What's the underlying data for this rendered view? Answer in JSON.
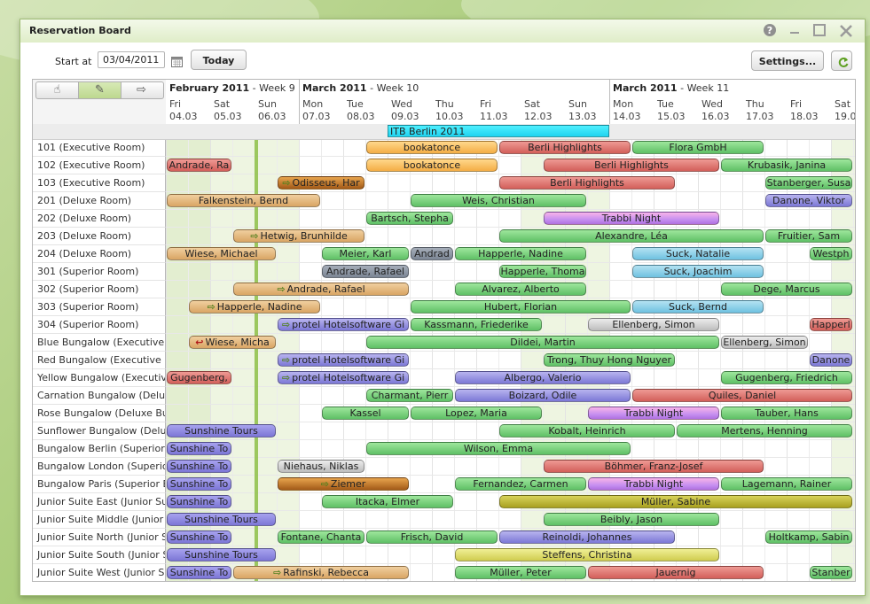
{
  "window": {
    "title": "Reservation Board"
  },
  "toolbar": {
    "start_label": "Start at",
    "start_value": "03/04/2011",
    "today_label": "Today",
    "settings_label": "Settings..."
  },
  "weeks": [
    {
      "month": "February 2011",
      "week": "Week 9"
    },
    {
      "month": "March 2011",
      "week": "Week 10"
    },
    {
      "month": "March 2011",
      "week": "Week 11"
    }
  ],
  "days": [
    {
      "dow": "Fri",
      "date": "04.03"
    },
    {
      "dow": "Sat",
      "date": "05.03"
    },
    {
      "dow": "Sun",
      "date": "06.03"
    },
    {
      "dow": "Mon",
      "date": "07.03"
    },
    {
      "dow": "Tue",
      "date": "08.03"
    },
    {
      "dow": "Wed",
      "date": "09.03"
    },
    {
      "dow": "Thu",
      "date": "10.03"
    },
    {
      "dow": "Fri",
      "date": "11.03"
    },
    {
      "dow": "Sat",
      "date": "12.03"
    },
    {
      "dow": "Sun",
      "date": "13.03"
    },
    {
      "dow": "Mon",
      "date": "14.03"
    },
    {
      "dow": "Tue",
      "date": "15.03"
    },
    {
      "dow": "Wed",
      "date": "16.03"
    },
    {
      "dow": "Thu",
      "date": "17.03"
    },
    {
      "dow": "Fri",
      "date": "18.03"
    },
    {
      "dow": "Sat",
      "date": "19.0"
    }
  ],
  "event": "ITB Berlin 2011",
  "rooms": [
    "101 (Executive Room)",
    "102 (Executive Room)",
    "103 (Executive Room)",
    "201 (Deluxe Room)",
    "202 (Deluxe Room)",
    "203 (Deluxe Room)",
    "204 (Deluxe Room)",
    "301 (Superior Room)",
    "302 (Superior Room)",
    "303 (Superior Room)",
    "304 (Superior Room)",
    "Blue Bungalow (Executive I",
    "Red Bungalow (Executive B",
    "Yellow Bungalow (Executive",
    "Carnation Bungalow (Delux",
    "Rose Bungalow (Deluxe Bur",
    "Sunflower Bungalow (Delux",
    "Bungalow Berlin (Superior E",
    "Bungalow London (Superior",
    "Bungalow Paris (Superior Bu",
    "Junior Suite East (Junior Su",
    "Junior Suite Middle (Junior S",
    "Junior Suite North (Junior S",
    "Junior Suite South (Junior S",
    "Junior Suite West (Junior Su"
  ],
  "reservations": [
    {
      "row": 0,
      "start": 4.5,
      "end": 7.5,
      "label": "bookatonce",
      "color": "orange"
    },
    {
      "row": 0,
      "start": 7.5,
      "end": 10.5,
      "label": "Berli Highlights",
      "color": "red"
    },
    {
      "row": 0,
      "start": 10.5,
      "end": 13.5,
      "label": "Flora GmbH",
      "color": "green"
    },
    {
      "row": 1,
      "start": 0,
      "end": 1.5,
      "label": "Andrade, Ra",
      "color": "red"
    },
    {
      "row": 1,
      "start": 4.5,
      "end": 7.5,
      "label": "bookatonce",
      "color": "orange"
    },
    {
      "row": 1,
      "start": 8.5,
      "end": 12.5,
      "label": "Berli Highlights",
      "color": "red"
    },
    {
      "row": 1,
      "start": 12.5,
      "end": 15.5,
      "label": "Krubasik, Janina",
      "color": "green"
    },
    {
      "row": 2,
      "start": 2.5,
      "end": 4.5,
      "label": "Odisseus, Har",
      "color": "brown",
      "arrow": true
    },
    {
      "row": 2,
      "start": 7.5,
      "end": 11.5,
      "label": "Berli Highlights",
      "color": "red"
    },
    {
      "row": 2,
      "start": 13.5,
      "end": 15.5,
      "label": "Stanberger, Susa",
      "color": "green"
    },
    {
      "row": 3,
      "start": 0,
      "end": 3.5,
      "label": "Falkenstein, Bernd",
      "color": "tan"
    },
    {
      "row": 3,
      "start": 5.5,
      "end": 9.5,
      "label": "Weis, Christian",
      "color": "green"
    },
    {
      "row": 3,
      "start": 13.5,
      "end": 15.5,
      "label": "Danone, Viktor",
      "color": "purple"
    },
    {
      "row": 4,
      "start": 4.5,
      "end": 6.5,
      "label": "Bartsch, Stepha",
      "color": "green"
    },
    {
      "row": 4,
      "start": 8.5,
      "end": 12.5,
      "label": "Trabbi Night",
      "color": "pink"
    },
    {
      "row": 5,
      "start": 1.5,
      "end": 4.5,
      "label": "Hetwig, Brunhilde",
      "color": "tan",
      "arrow": true
    },
    {
      "row": 5,
      "start": 7.5,
      "end": 13.5,
      "label": "Alexandre, Léa",
      "color": "green"
    },
    {
      "row": 5,
      "start": 13.5,
      "end": 15.5,
      "label": "Fruitier, Sam",
      "color": "green"
    },
    {
      "row": 6,
      "start": 0,
      "end": 2.5,
      "label": "Wiese, Michael",
      "color": "tan"
    },
    {
      "row": 6,
      "start": 3.5,
      "end": 5.5,
      "label": "Meier, Karl",
      "color": "green"
    },
    {
      "row": 6,
      "start": 5.5,
      "end": 6.5,
      "label": "Andrad",
      "color": "slate"
    },
    {
      "row": 6,
      "start": 6.5,
      "end": 9.5,
      "label": "Happerle, Nadine",
      "color": "green"
    },
    {
      "row": 6,
      "start": 10.5,
      "end": 13.5,
      "label": "Suck, Natalie",
      "color": "blue"
    },
    {
      "row": 6,
      "start": 14.5,
      "end": 15.5,
      "label": "Westph",
      "color": "green"
    },
    {
      "row": 7,
      "start": 3.5,
      "end": 5.5,
      "label": "Andrade, Rafael",
      "color": "slate"
    },
    {
      "row": 7,
      "start": 7.5,
      "end": 9.5,
      "label": "Happerle, Thoma",
      "color": "green"
    },
    {
      "row": 7,
      "start": 10.5,
      "end": 13.5,
      "label": "Suck, Joachim",
      "color": "blue"
    },
    {
      "row": 8,
      "start": 1.5,
      "end": 5.5,
      "label": "Andrade, Rafael",
      "color": "tan",
      "arrow": true
    },
    {
      "row": 8,
      "start": 6.5,
      "end": 9.5,
      "label": "Alvarez, Alberto",
      "color": "green"
    },
    {
      "row": 8,
      "start": 12.5,
      "end": 15.5,
      "label": "Dege, Marcus",
      "color": "green"
    },
    {
      "row": 9,
      "start": 0.5,
      "end": 3.5,
      "label": "Happerle, Nadine",
      "color": "tan",
      "arrow": true
    },
    {
      "row": 9,
      "start": 5.5,
      "end": 10.5,
      "label": "Hubert, Florian",
      "color": "green"
    },
    {
      "row": 9,
      "start": 10.5,
      "end": 13.5,
      "label": "Suck, Bernd",
      "color": "blue"
    },
    {
      "row": 10,
      "start": 2.5,
      "end": 5.5,
      "label": "protel Hotelsoftware Gi",
      "color": "purple",
      "arrow": true
    },
    {
      "row": 10,
      "start": 5.5,
      "end": 8.5,
      "label": "Kassmann, Friederike",
      "color": "green"
    },
    {
      "row": 10,
      "start": 9.5,
      "end": 12.5,
      "label": "Ellenberg, Simon",
      "color": "grey"
    },
    {
      "row": 10,
      "start": 14.5,
      "end": 15.5,
      "label": "Happerl",
      "color": "red"
    },
    {
      "row": 11,
      "start": 0.5,
      "end": 2.5,
      "label": "Wiese, Micha",
      "color": "tan",
      "redarrow": true
    },
    {
      "row": 11,
      "start": 4.5,
      "end": 12.5,
      "label": "Dildei, Martin",
      "color": "green"
    },
    {
      "row": 11,
      "start": 12.5,
      "end": 14.5,
      "label": "Ellenberg, Simon",
      "color": "grey"
    },
    {
      "row": 12,
      "start": 2.5,
      "end": 5.5,
      "label": "protel Hotelsoftware Gi",
      "color": "purple",
      "arrow": true
    },
    {
      "row": 12,
      "start": 8.5,
      "end": 11.5,
      "label": "Trong, Thuy Hong Nguyer",
      "color": "green"
    },
    {
      "row": 12,
      "start": 14.5,
      "end": 15.5,
      "label": "Danone",
      "color": "purple"
    },
    {
      "row": 13,
      "start": 0,
      "end": 1.5,
      "label": "Gugenberg,",
      "color": "red"
    },
    {
      "row": 13,
      "start": 2.5,
      "end": 5.5,
      "label": "protel Hotelsoftware Gi",
      "color": "purple",
      "arrow": true
    },
    {
      "row": 13,
      "start": 6.5,
      "end": 10.5,
      "label": "Albergo, Valerio",
      "color": "purple"
    },
    {
      "row": 13,
      "start": 12.5,
      "end": 15.5,
      "label": "Gugenberg, Friedrich",
      "color": "green"
    },
    {
      "row": 14,
      "start": 4.5,
      "end": 6.5,
      "label": "Charmant, Pierr",
      "color": "green"
    },
    {
      "row": 14,
      "start": 6.5,
      "end": 10.5,
      "label": "Boizard, Odile",
      "color": "purple"
    },
    {
      "row": 14,
      "start": 10.5,
      "end": 15.5,
      "label": "Quiles, Daniel",
      "color": "red"
    },
    {
      "row": 15,
      "start": 3.5,
      "end": 5.5,
      "label": "Kassel",
      "color": "green"
    },
    {
      "row": 15,
      "start": 5.5,
      "end": 8.5,
      "label": "Lopez, Maria",
      "color": "green"
    },
    {
      "row": 15,
      "start": 9.5,
      "end": 12.5,
      "label": "Trabbi Night",
      "color": "pink"
    },
    {
      "row": 15,
      "start": 12.5,
      "end": 15.5,
      "label": "Tauber, Hans",
      "color": "green"
    },
    {
      "row": 16,
      "start": 0,
      "end": 2.5,
      "label": "Sunshine Tours",
      "color": "sun"
    },
    {
      "row": 16,
      "start": 7.5,
      "end": 11.5,
      "label": "Kobalt, Heinrich",
      "color": "green"
    },
    {
      "row": 16,
      "start": 11.5,
      "end": 15.5,
      "label": "Mertens, Henning",
      "color": "green"
    },
    {
      "row": 17,
      "start": 0,
      "end": 1.5,
      "label": "Sunshine To",
      "color": "sun"
    },
    {
      "row": 17,
      "start": 4.5,
      "end": 10.5,
      "label": "Wilson, Emma",
      "color": "green"
    },
    {
      "row": 18,
      "start": 0,
      "end": 1.5,
      "label": "Sunshine To",
      "color": "sun"
    },
    {
      "row": 18,
      "start": 2.5,
      "end": 4.5,
      "label": "Niehaus, Niklas",
      "color": "grey"
    },
    {
      "row": 18,
      "start": 8.5,
      "end": 13.5,
      "label": "Böhmer, Franz-Josef",
      "color": "red"
    },
    {
      "row": 19,
      "start": 0,
      "end": 1.5,
      "label": "Sunshine To",
      "color": "sun"
    },
    {
      "row": 19,
      "start": 2.5,
      "end": 5.5,
      "label": "Ziemer",
      "color": "brown",
      "arrow": true
    },
    {
      "row": 19,
      "start": 6.5,
      "end": 9.5,
      "label": "Fernandez, Carmen",
      "color": "green"
    },
    {
      "row": 19,
      "start": 9.5,
      "end": 12.5,
      "label": "Trabbi Night",
      "color": "pink"
    },
    {
      "row": 19,
      "start": 12.5,
      "end": 15.5,
      "label": "Lagemann, Rainer",
      "color": "green"
    },
    {
      "row": 20,
      "start": 0,
      "end": 1.5,
      "label": "Sunshine To",
      "color": "sun"
    },
    {
      "row": 20,
      "start": 3.5,
      "end": 6.5,
      "label": "Itacka, Elmer",
      "color": "green"
    },
    {
      "row": 20,
      "start": 7.5,
      "end": 15.5,
      "label": "Müller, Sabine",
      "color": "olive"
    },
    {
      "row": 21,
      "start": 0,
      "end": 2.5,
      "label": "Sunshine Tours",
      "color": "sun"
    },
    {
      "row": 21,
      "start": 8.5,
      "end": 12.5,
      "label": "Beibly, Jason",
      "color": "green"
    },
    {
      "row": 22,
      "start": 0,
      "end": 1.5,
      "label": "Sunshine To",
      "color": "sun"
    },
    {
      "row": 22,
      "start": 2.5,
      "end": 4.5,
      "label": "Fontane, Chanta",
      "color": "green"
    },
    {
      "row": 22,
      "start": 4.5,
      "end": 7.5,
      "label": "Frisch, David",
      "color": "green"
    },
    {
      "row": 22,
      "start": 7.5,
      "end": 11.5,
      "label": "Reinoldi, Johannes",
      "color": "purple"
    },
    {
      "row": 22,
      "start": 13.5,
      "end": 15.5,
      "label": "Holtkamp, Sabin",
      "color": "green"
    },
    {
      "row": 23,
      "start": 0,
      "end": 2.5,
      "label": "Sunshine Tours",
      "color": "sun"
    },
    {
      "row": 23,
      "start": 6.5,
      "end": 12.5,
      "label": "Steffens, Christina",
      "color": "yellow"
    },
    {
      "row": 24,
      "start": 0,
      "end": 1.5,
      "label": "Sunshine To",
      "color": "sun"
    },
    {
      "row": 24,
      "start": 1.5,
      "end": 5.5,
      "label": "Rafinski, Rebecca",
      "color": "tan",
      "arrow": true
    },
    {
      "row": 24,
      "start": 6.5,
      "end": 9.5,
      "label": "Müller, Peter",
      "color": "green"
    },
    {
      "row": 24,
      "start": 9.5,
      "end": 13.5,
      "label": "Jauernig",
      "color": "red"
    },
    {
      "row": 24,
      "start": 14.5,
      "end": 15.5,
      "label": "Stanber",
      "color": "green"
    }
  ]
}
